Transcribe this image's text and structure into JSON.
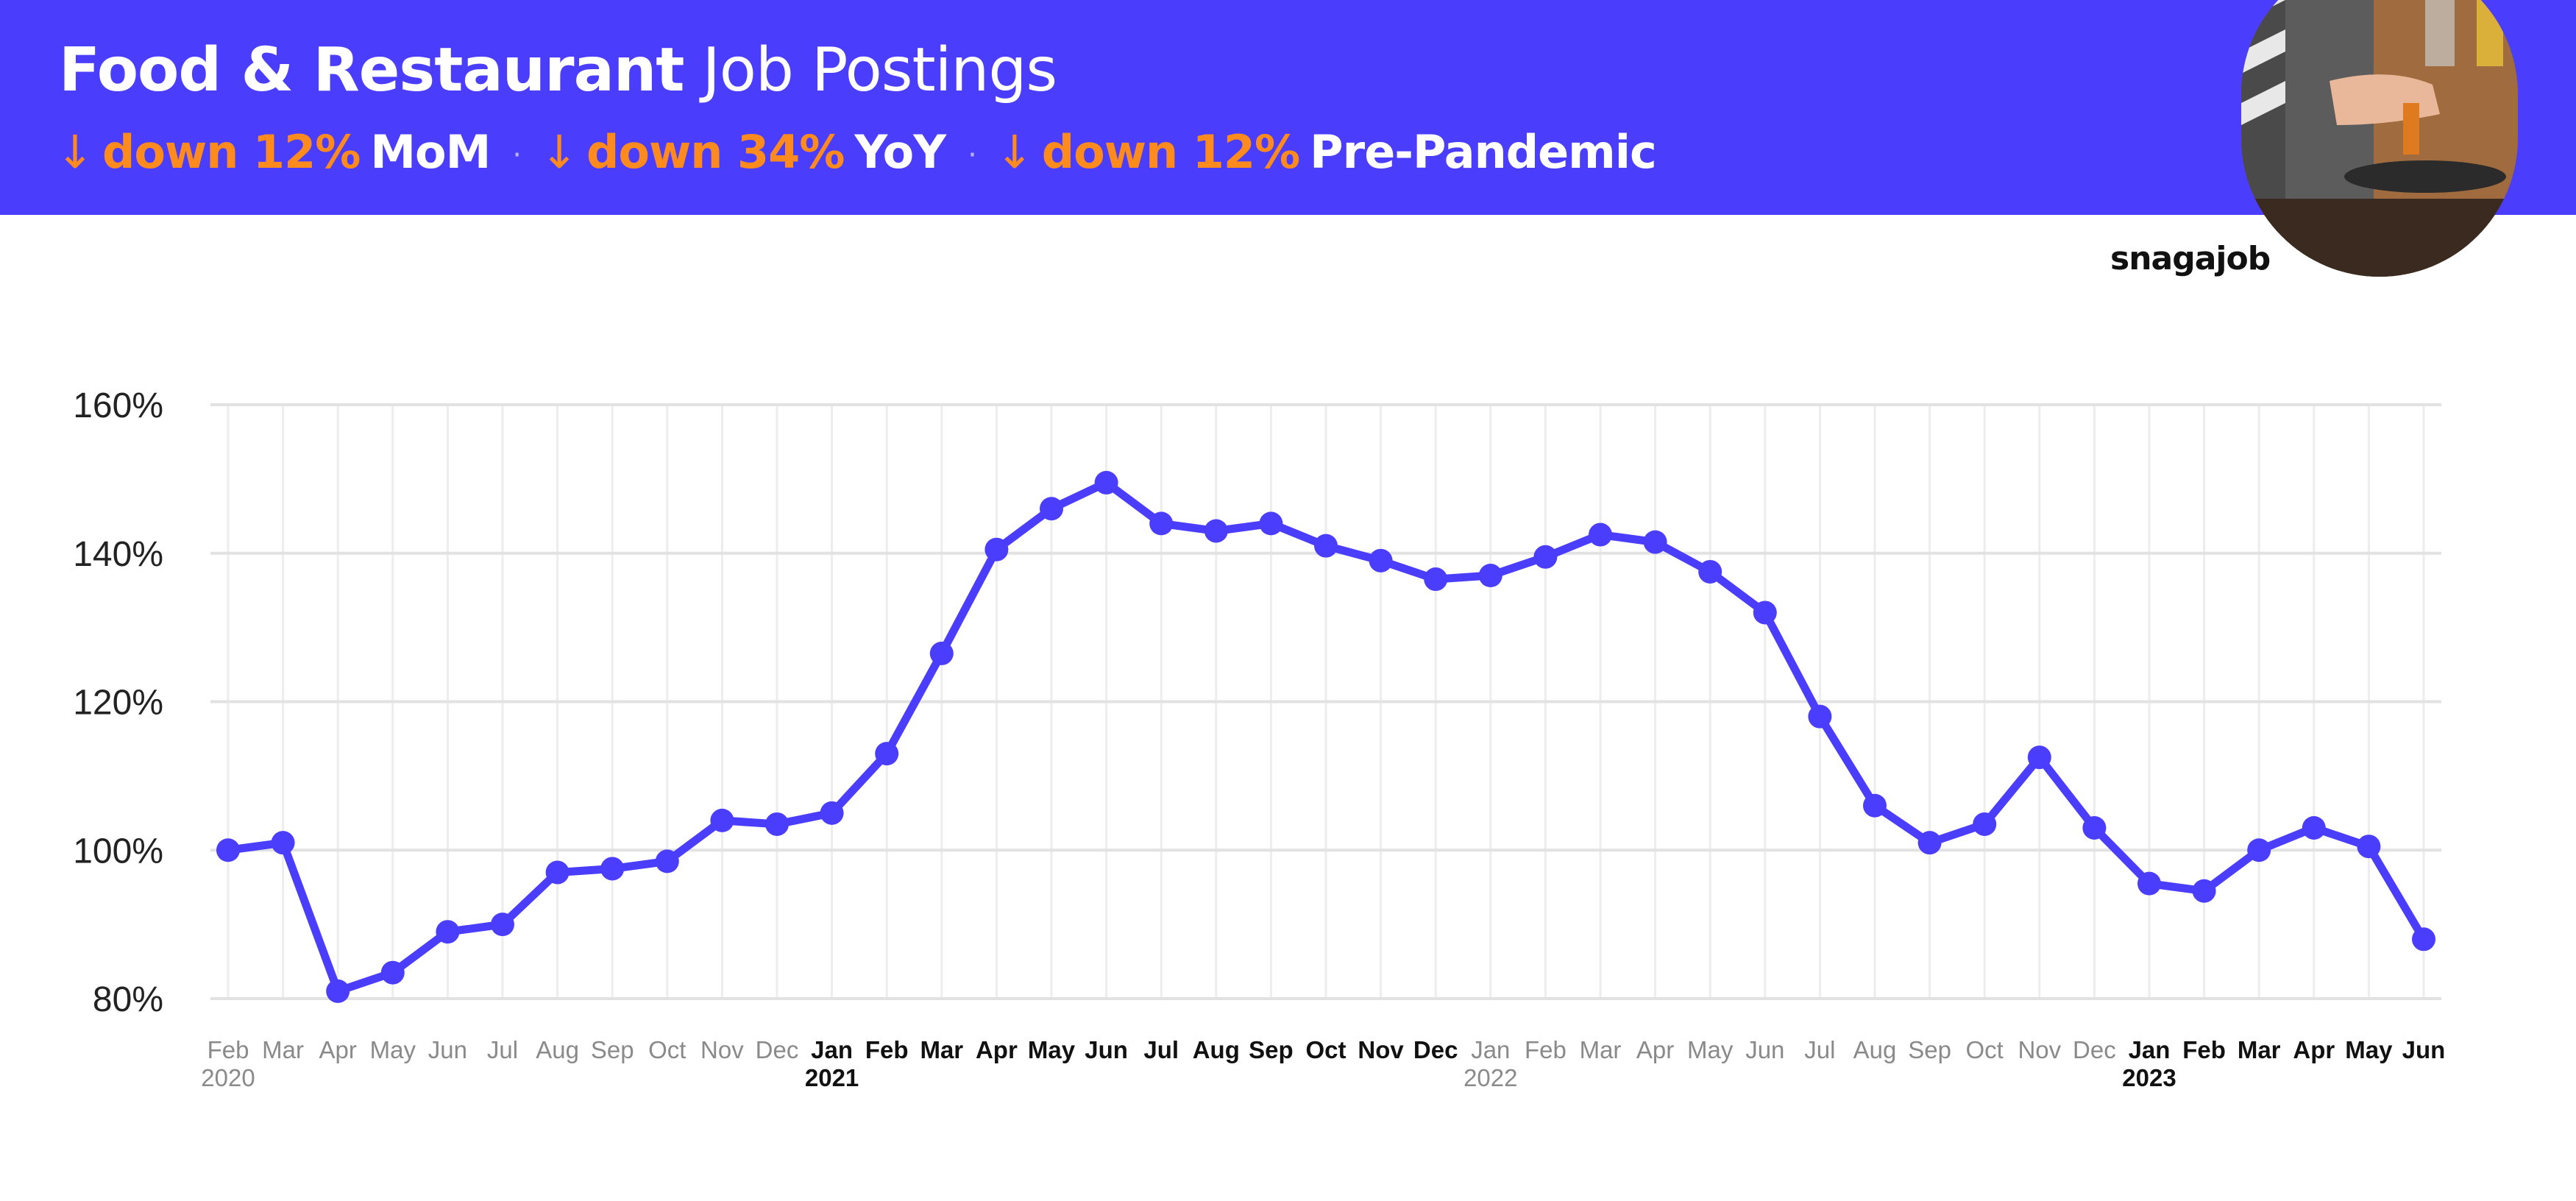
{
  "header": {
    "title_bold": "Food & Restaurant",
    "title_light": "Job Postings",
    "stats": [
      {
        "arrow": "↓",
        "change": "down 12%",
        "period": "MoM"
      },
      {
        "arrow": "↓",
        "change": "down 34%",
        "period": "YoY"
      },
      {
        "arrow": "↓",
        "change": "down 12%",
        "period": "Pre-Pandemic"
      }
    ],
    "separator": "·"
  },
  "brand": {
    "logo_text": "snagajob"
  },
  "colors": {
    "accent": "#4b3dfc",
    "highlight": "#ff8a1e",
    "line": "#4b3dfc"
  },
  "chart_data": {
    "type": "line",
    "title": "",
    "xlabel": "",
    "ylabel": "",
    "ylim": [
      80,
      160
    ],
    "yticks": [
      80,
      100,
      120,
      140,
      160
    ],
    "ytick_labels": [
      "80%",
      "100%",
      "120%",
      "140%",
      "160%"
    ],
    "grid": true,
    "legend": "none",
    "x": [
      "Feb",
      "Mar",
      "Apr",
      "May",
      "Jun",
      "Jul",
      "Aug",
      "Sep",
      "Oct",
      "Nov",
      "Dec",
      "Jan",
      "Feb",
      "Mar",
      "Apr",
      "May",
      "Jun",
      "Jul",
      "Aug",
      "Sep",
      "Oct",
      "Nov",
      "Dec",
      "Jan",
      "Feb",
      "Mar",
      "Apr",
      "May",
      "Jun",
      "Jul",
      "Aug",
      "Sep",
      "Oct",
      "Nov",
      "Dec",
      "Jan",
      "Feb",
      "Mar",
      "Apr",
      "May",
      "Jun"
    ],
    "year_labels": [
      {
        "index": 0,
        "label": "2020"
      },
      {
        "index": 11,
        "label": "2021"
      },
      {
        "index": 23,
        "label": "2022"
      },
      {
        "index": 35,
        "label": "2023"
      }
    ],
    "series": [
      {
        "values": [
          100,
          101,
          81,
          83.5,
          89,
          90,
          97,
          97.5,
          98.5,
          104,
          103.5,
          105,
          113,
          126.5,
          140.5,
          146,
          149.5,
          144,
          143,
          144,
          141,
          139,
          136.5,
          137,
          139.5,
          142.5,
          141.5,
          137.5,
          132,
          118,
          106,
          101,
          103.5,
          112.5,
          103,
          95.5,
          94.5,
          100,
          103,
          100.5,
          88
        ]
      }
    ]
  }
}
